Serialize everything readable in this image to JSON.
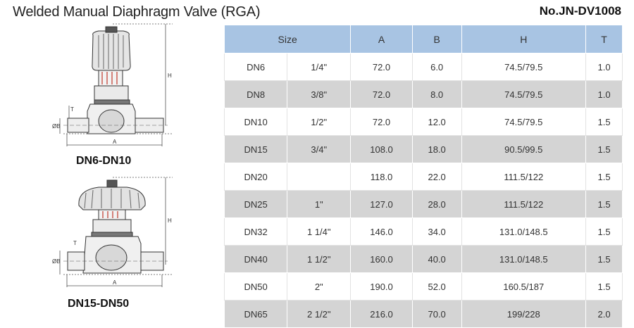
{
  "header": {
    "title": "Welded Manual Diaphragm Valve (RGA)",
    "doc_number": "No.JN-DV1008"
  },
  "figures": [
    {
      "caption": "DN6-DN10",
      "dim_labels": {
        "length": "A",
        "height": "H",
        "thickness": "T",
        "diameter": "ØB"
      }
    },
    {
      "caption": "DN15-DN50",
      "dim_labels": {
        "length": "A",
        "height": "H",
        "thickness": "T",
        "diameter": "ØB"
      }
    }
  ],
  "table": {
    "headers": [
      "Size",
      "A",
      "B",
      "H",
      "T"
    ],
    "rows": [
      {
        "dn": "DN6",
        "inch": "1/4\"",
        "a": "72.0",
        "b": "6.0",
        "h": "74.5/79.5",
        "t": "1.0"
      },
      {
        "dn": "DN8",
        "inch": "3/8\"",
        "a": "72.0",
        "b": "8.0",
        "h": "74.5/79.5",
        "t": "1.0"
      },
      {
        "dn": "DN10",
        "inch": "1/2\"",
        "a": "72.0",
        "b": "12.0",
        "h": "74.5/79.5",
        "t": "1.5"
      },
      {
        "dn": "DN15",
        "inch": "3/4\"",
        "a": "108.0",
        "b": "18.0",
        "h": "90.5/99.5",
        "t": "1.5"
      },
      {
        "dn": "DN20",
        "inch": "",
        "a": "118.0",
        "b": "22.0",
        "h": "111.5/122",
        "t": "1.5"
      },
      {
        "dn": "DN25",
        "inch": "1\"",
        "a": "127.0",
        "b": "28.0",
        "h": "111.5/122",
        "t": "1.5"
      },
      {
        "dn": "DN32",
        "inch": "1 1/4\"",
        "a": "146.0",
        "b": "34.0",
        "h": "131.0/148.5",
        "t": "1.5"
      },
      {
        "dn": "DN40",
        "inch": "1 1/2\"",
        "a": "160.0",
        "b": "40.0",
        "h": "131.0/148.5",
        "t": "1.5"
      },
      {
        "dn": "DN50",
        "inch": "2\"",
        "a": "190.0",
        "b": "52.0",
        "h": "160.5/187",
        "t": "1.5"
      },
      {
        "dn": "DN65",
        "inch": "2 1/2\"",
        "a": "216.0",
        "b": "70.0",
        "h": "199/228",
        "t": "2.0"
      }
    ]
  },
  "colors": {
    "header_bg": "#a8c4e3",
    "stripe_bg": "#d4d4d4"
  }
}
